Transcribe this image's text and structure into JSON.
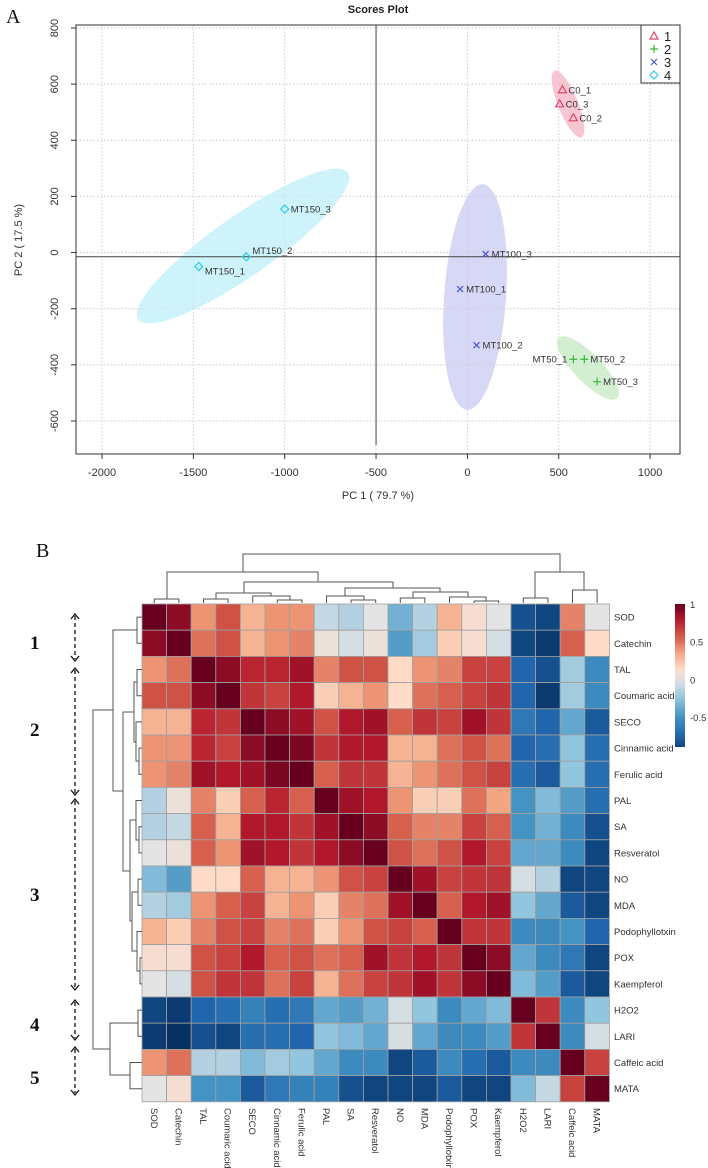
{
  "panel_labels": {
    "a": "A",
    "b": "B"
  },
  "cluster_groups": [
    {
      "label": "1",
      "rows": [
        "SOD",
        "Catechin"
      ]
    },
    {
      "label": "2",
      "rows": [
        "TAL",
        "Coumaric acid",
        "SECO",
        "Cinnamic acid",
        "Ferulic acid"
      ]
    },
    {
      "label": "3",
      "rows": [
        "PAL",
        "SA",
        "Resveratol",
        "NO",
        "MDA",
        "Podophyllotxin",
        "POX",
        "Kaempferol"
      ]
    },
    {
      "label": "4",
      "rows": [
        "H2O2",
        "LARI"
      ]
    },
    {
      "label": "5",
      "rows": [
        "Caffeic acid",
        "MATA"
      ]
    }
  ],
  "chart_data": [
    {
      "type": "scatter",
      "title": "Scores Plot",
      "xlabel": "PC 1 ( 79.7 %)",
      "ylabel": "PC 2 ( 17.5 %)",
      "xlim": [
        -2140,
        1160
      ],
      "ylim": [
        -700,
        820
      ],
      "xticks": [
        -2000,
        -1500,
        -1000,
        -500,
        0,
        500,
        1000
      ],
      "yticks": [
        800,
        600,
        400,
        200,
        0,
        -200,
        -400,
        -600
      ],
      "grid": true,
      "reference_lines": {
        "x": -500,
        "y": -15
      },
      "legend_position": "top-right",
      "series": [
        {
          "name": "1",
          "marker": "triangle",
          "color": "#e0446a",
          "fill": "#f4b3c4",
          "points": [
            {
              "label": "C0_1",
              "x": 520,
              "y": 580
            },
            {
              "label": "C0_3",
              "x": 505,
              "y": 530
            },
            {
              "label": "C0_2",
              "x": 580,
              "y": 480
            }
          ]
        },
        {
          "name": "2",
          "marker": "plus",
          "color": "#3cb83c",
          "fill": "#c6e8c3",
          "points": [
            {
              "label": "MT50_1",
              "x": 580,
              "y": -380
            },
            {
              "label": "MT50_2",
              "x": 640,
              "y": -380
            },
            {
              "label": "MT50_3",
              "x": 710,
              "y": -460
            }
          ]
        },
        {
          "name": "3",
          "marker": "cross",
          "color": "#4a55d8",
          "fill": "#c9cbf2",
          "points": [
            {
              "label": "MT100_3",
              "x": 100,
              "y": -5
            },
            {
              "label": "MT100_1",
              "x": -40,
              "y": -130
            },
            {
              "label": "MT100_2",
              "x": 50,
              "y": -330
            }
          ]
        },
        {
          "name": "4",
          "marker": "diamond",
          "color": "#2ccfe6",
          "fill": "#bfeff8",
          "points": [
            {
              "label": "MT150_3",
              "x": -1000,
              "y": 155
            },
            {
              "label": "MT150_2",
              "x": -1210,
              "y": -15
            },
            {
              "label": "MT150_1",
              "x": -1470,
              "y": -50
            }
          ]
        }
      ]
    },
    {
      "type": "heatmap",
      "rows": [
        "SOD",
        "Catechin",
        "TAL",
        "Coumaric acid",
        "SECO",
        "Cinnamic acid",
        "Ferulic acid",
        "PAL",
        "SA",
        "Resveratol",
        "NO",
        "MDA",
        "Podophyllotxin",
        "POX",
        "Kaempferol",
        "H2O2",
        "LARI",
        "Caffeic acid",
        "MATA"
      ],
      "columns": [
        "SOD",
        "Catechin",
        "TAL",
        "Coumaric acid",
        "SECO",
        "Cinnamic acid",
        "Ferulic acid",
        "PAL",
        "SA",
        "Resveratol",
        "NO",
        "MDA",
        "Podophyllotxin",
        "POX",
        "Kaempferol",
        "H2O2",
        "LARI",
        "Caffeic acid",
        "MATA"
      ],
      "colorbar": {
        "range": [
          -0.9,
          1
        ],
        "ticks": [
          1,
          0.5,
          0,
          -0.5
        ],
        "tick_labels": [
          "1",
          "0.5",
          "0",
          "-0.5"
        ]
      },
      "values": [
        [
          1,
          0.9,
          0.4,
          0.6,
          0.3,
          0.4,
          0.4,
          -0.1,
          -0.15,
          0,
          -0.35,
          -0.15,
          0.3,
          0.1,
          0,
          -0.85,
          -0.9,
          0.45,
          0
        ],
        [
          0.9,
          1,
          0.5,
          0.6,
          0.3,
          0.4,
          0.45,
          0.05,
          -0.05,
          0.05,
          -0.45,
          -0.2,
          0.2,
          0.1,
          -0.05,
          -0.9,
          -0.95,
          0.55,
          0.15
        ],
        [
          0.4,
          0.5,
          1,
          0.9,
          0.75,
          0.75,
          0.85,
          0.45,
          0.6,
          0.6,
          0.15,
          0.4,
          0.45,
          0.65,
          0.65,
          -0.75,
          -0.85,
          -0.2,
          -0.55
        ],
        [
          0.6,
          0.6,
          0.9,
          1,
          0.7,
          0.65,
          0.8,
          0.2,
          0.3,
          0.4,
          0.15,
          0.5,
          0.55,
          0.65,
          0.7,
          -0.75,
          -0.95,
          -0.2,
          -0.55
        ],
        [
          0.3,
          0.3,
          0.75,
          0.7,
          1,
          0.9,
          0.85,
          0.6,
          0.8,
          0.85,
          0.55,
          0.7,
          0.65,
          0.85,
          0.7,
          -0.65,
          -0.75,
          -0.4,
          -0.8
        ],
        [
          0.4,
          0.4,
          0.75,
          0.65,
          0.9,
          1,
          0.95,
          0.7,
          0.8,
          0.8,
          0.3,
          0.3,
          0.5,
          0.6,
          0.5,
          -0.75,
          -0.7,
          -0.25,
          -0.7
        ],
        [
          0.4,
          0.45,
          0.85,
          0.8,
          0.85,
          0.95,
          1,
          0.55,
          0.7,
          0.7,
          0.3,
          0.4,
          0.5,
          0.6,
          0.65,
          -0.7,
          -0.8,
          -0.25,
          -0.7
        ],
        [
          -0.15,
          0.05,
          0.45,
          0.2,
          0.55,
          0.75,
          0.55,
          1,
          0.85,
          0.8,
          0.4,
          0.2,
          0.2,
          0.5,
          0.35,
          -0.5,
          -0.3,
          -0.45,
          -0.7
        ],
        [
          -0.15,
          -0.1,
          0.55,
          0.3,
          0.8,
          0.8,
          0.7,
          0.85,
          1,
          0.9,
          0.55,
          0.45,
          0.45,
          0.65,
          0.55,
          -0.5,
          -0.35,
          -0.55,
          -0.85
        ],
        [
          0,
          0.05,
          0.55,
          0.4,
          0.85,
          0.8,
          0.7,
          0.8,
          0.9,
          1,
          0.6,
          0.5,
          0.6,
          0.8,
          0.65,
          -0.4,
          -0.4,
          -0.55,
          -0.9
        ],
        [
          -0.3,
          -0.45,
          0.15,
          0.15,
          0.55,
          0.3,
          0.3,
          0.4,
          0.6,
          0.65,
          1,
          0.85,
          0.65,
          0.7,
          0.7,
          -0.05,
          -0.15,
          -0.9,
          -0.9
        ],
        [
          -0.15,
          -0.2,
          0.4,
          0.55,
          0.65,
          0.3,
          0.4,
          0.2,
          0.45,
          0.5,
          0.85,
          1,
          0.55,
          0.8,
          0.85,
          -0.25,
          -0.4,
          -0.8,
          -0.9
        ],
        [
          0.3,
          0.2,
          0.45,
          0.6,
          0.65,
          0.45,
          0.5,
          0.2,
          0.4,
          0.6,
          0.65,
          0.55,
          1,
          0.7,
          0.7,
          -0.55,
          -0.55,
          -0.5,
          -0.75
        ],
        [
          0.1,
          0.1,
          0.6,
          0.65,
          0.8,
          0.55,
          0.6,
          0.5,
          0.55,
          0.85,
          0.7,
          0.8,
          0.7,
          1,
          0.9,
          -0.4,
          -0.55,
          -0.65,
          -0.9
        ],
        [
          0,
          -0.05,
          0.6,
          0.7,
          0.7,
          0.5,
          0.65,
          0.3,
          0.5,
          0.65,
          0.7,
          0.85,
          0.7,
          0.9,
          1,
          -0.3,
          -0.45,
          -0.8,
          -0.9
        ],
        [
          -0.9,
          -0.95,
          -0.75,
          -0.7,
          -0.6,
          -0.7,
          -0.65,
          -0.4,
          -0.45,
          -0.35,
          -0.05,
          -0.25,
          -0.55,
          -0.4,
          -0.3,
          1,
          0.7,
          -0.55,
          -0.25
        ],
        [
          -0.95,
          -1,
          -0.85,
          -0.9,
          -0.7,
          -0.7,
          -0.75,
          -0.25,
          -0.3,
          -0.4,
          -0.05,
          -0.4,
          -0.55,
          -0.55,
          -0.45,
          0.7,
          1,
          -0.55,
          -0.05
        ],
        [
          0.4,
          0.5,
          -0.15,
          -0.15,
          -0.3,
          -0.2,
          -0.25,
          -0.4,
          -0.55,
          -0.55,
          -0.9,
          -0.8,
          -0.55,
          -0.7,
          -0.8,
          -0.55,
          -0.55,
          1,
          0.65
        ],
        [
          0,
          0.1,
          -0.5,
          -0.5,
          -0.8,
          -0.65,
          -0.6,
          -0.6,
          -0.85,
          -0.9,
          -0.9,
          -0.9,
          -0.8,
          -0.9,
          -0.9,
          -0.3,
          -0.1,
          0.65,
          1
        ]
      ]
    }
  ]
}
